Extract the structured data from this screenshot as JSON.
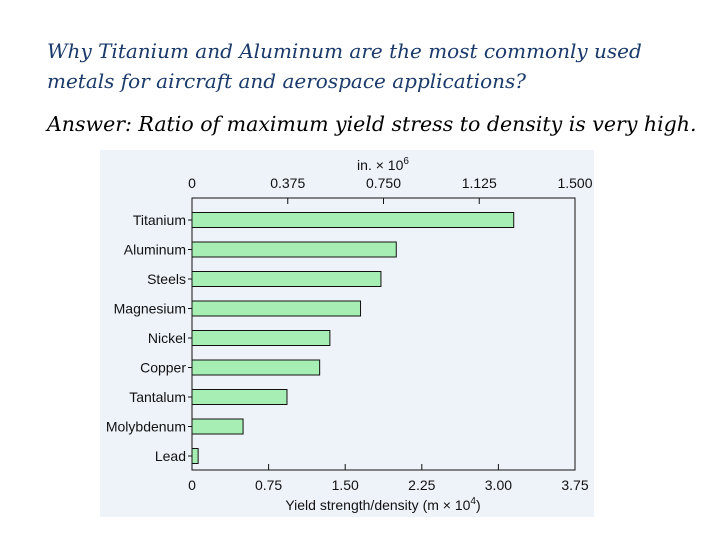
{
  "slide": {
    "question_line1": "Why Titanium and Aluminum are the most commonly used",
    "question_line2": "metals for aircraft and aerospace applications?",
    "answer": "Answer: Ratio of maximum yield stress to density  is very high."
  },
  "colors": {
    "question_text": "#1a3a6b",
    "figure_background": "#eef3fa",
    "bar_fill": "#a6eeb4",
    "axis": "#111111"
  },
  "chart_data": {
    "type": "bar",
    "orientation": "horizontal",
    "categories": [
      "Titanium",
      "Aluminum",
      "Steels",
      "Magnesium",
      "Nickel",
      "Copper",
      "Tantalum",
      "Molybdenum",
      "Lead"
    ],
    "values": [
      3.15,
      2.0,
      1.85,
      1.65,
      1.35,
      1.25,
      0.93,
      0.5,
      0.06
    ],
    "xlabel_main": "Yield strength/density (m × 10",
    "xlabel_exp": "4",
    "xlabel_close": ")",
    "xlim": [
      0,
      3.75
    ],
    "bottom_ticks": [
      "0",
      "0.75",
      "1.50",
      "2.25",
      "3.00",
      "3.75"
    ],
    "top_axis_label_main": "in. × 10",
    "top_axis_label_exp": "6",
    "top_ticks": [
      "0",
      "0.375",
      "0.750",
      "1.125",
      "1.500"
    ],
    "grid": false
  }
}
